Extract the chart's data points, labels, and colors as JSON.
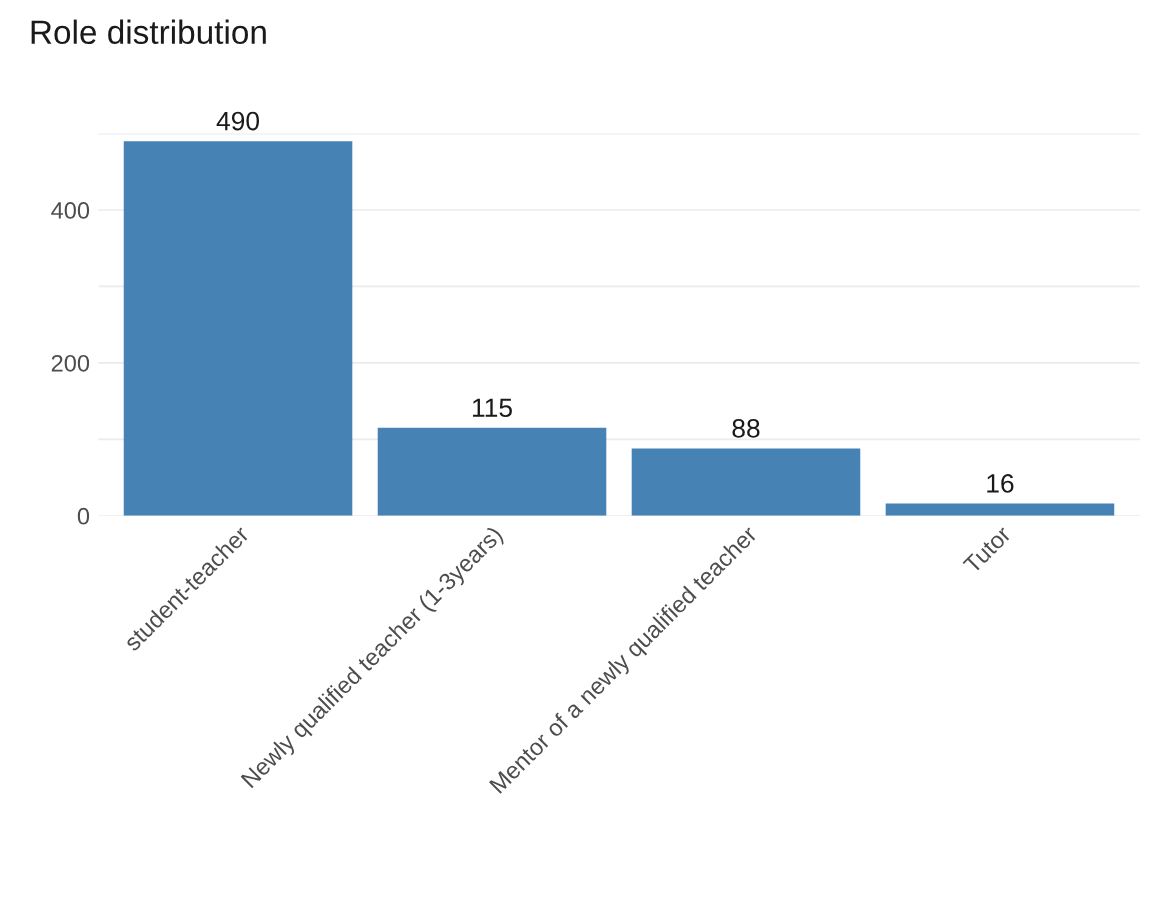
{
  "chart_data": {
    "type": "bar",
    "title": "Role distribution",
    "categories": [
      "student-teacher",
      "Newly qualified teacher (1-3years)",
      "Mentor of a newly qualified teacher",
      "Tutor"
    ],
    "values": [
      490,
      115,
      88,
      16
    ],
    "color": "#4682b4",
    "ylim": [
      0,
      500
    ],
    "yticks": [
      0,
      {
        "value": 100,
        "label": null
      },
      200,
      {
        "value": 300,
        "label": null
      },
      400,
      {
        "value": 500,
        "label": null
      }
    ],
    "grid": "y",
    "data_labels": true
  }
}
